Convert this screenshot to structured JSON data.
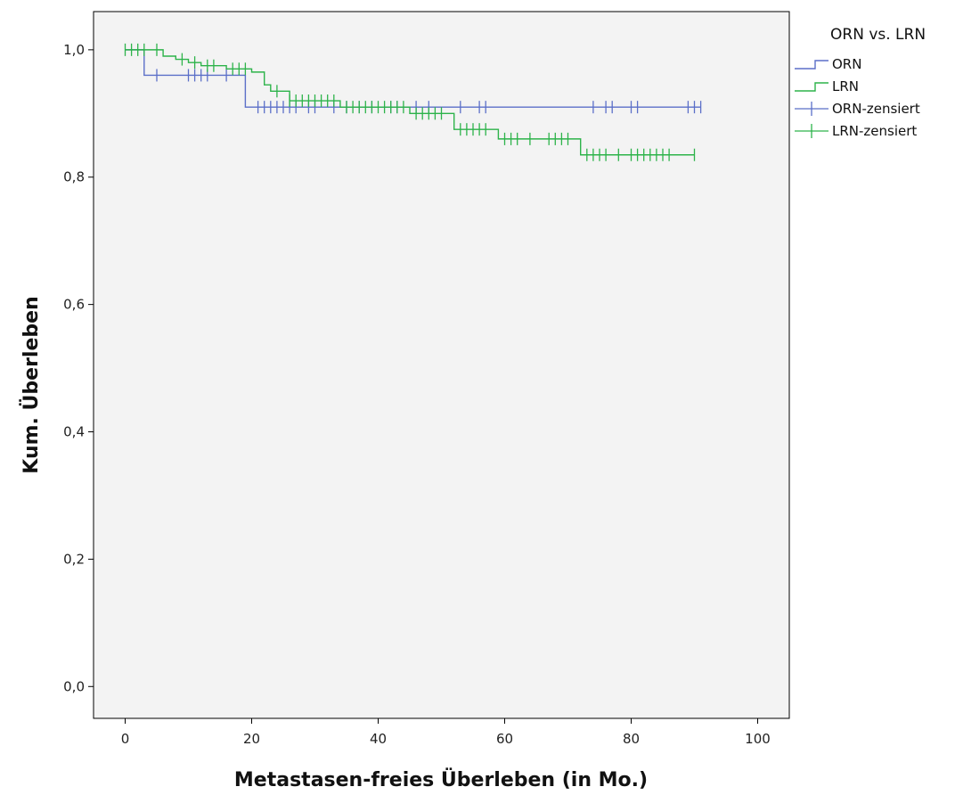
{
  "chart_data": {
    "type": "line",
    "subtype": "kaplan-meier step",
    "xlabel": "Metastasen-freies Überleben (in Mo.)",
    "ylabel": "Kum. Überleben",
    "xlim": [
      -5,
      105
    ],
    "ylim": [
      -0.05,
      1.06
    ],
    "x_ticks": [
      0,
      20,
      40,
      60,
      80,
      100
    ],
    "x_tick_labels": [
      "0",
      "20",
      "40",
      "60",
      "80",
      "100"
    ],
    "y_ticks": [
      0.0,
      0.2,
      0.4,
      0.6,
      0.8,
      1.0
    ],
    "y_tick_labels": [
      "0,0",
      "0,2",
      "0,4",
      "0,6",
      "0,8",
      "1,0"
    ],
    "grid": false,
    "background": "#f3f3f3",
    "legend": {
      "title": "ORN vs. LRN",
      "position": "outside-right-top",
      "entries": [
        "ORN",
        "LRN",
        "ORN-zensiert",
        "LRN-zensiert"
      ]
    },
    "series": [
      {
        "name": "ORN",
        "color": "#5b6fc8",
        "x_end": 91,
        "steps": [
          [
            0,
            1.0
          ],
          [
            3,
            0.96
          ],
          [
            19,
            0.91
          ]
        ],
        "censored": [
          5,
          10,
          11,
          12,
          13,
          16,
          21,
          22,
          23,
          24,
          25,
          26,
          27,
          29,
          30,
          33,
          35,
          37,
          39,
          42,
          43,
          46,
          48,
          53,
          56,
          57,
          74,
          76,
          77,
          80,
          81,
          89,
          90,
          91
        ]
      },
      {
        "name": "LRN",
        "color": "#2db34a",
        "x_end": 90,
        "steps": [
          [
            0,
            1.0
          ],
          [
            6,
            0.99
          ],
          [
            8,
            0.985
          ],
          [
            10,
            0.98
          ],
          [
            12,
            0.975
          ],
          [
            16,
            0.97
          ],
          [
            20,
            0.965
          ],
          [
            22,
            0.945
          ],
          [
            23,
            0.935
          ],
          [
            26,
            0.92
          ],
          [
            34,
            0.91
          ],
          [
            45,
            0.9
          ],
          [
            52,
            0.875
          ],
          [
            59,
            0.86
          ],
          [
            72,
            0.835
          ]
        ],
        "censored": [
          0,
          1,
          2,
          3,
          5,
          9,
          11,
          13,
          14,
          17,
          18,
          19,
          24,
          26,
          27,
          28,
          29,
          30,
          31,
          32,
          33,
          35,
          36,
          37,
          38,
          39,
          40,
          41,
          42,
          43,
          44,
          46,
          47,
          48,
          49,
          50,
          53,
          54,
          55,
          56,
          57,
          60,
          61,
          62,
          64,
          67,
          68,
          69,
          70,
          73,
          74,
          75,
          76,
          78,
          80,
          81,
          82,
          83,
          84,
          85,
          86,
          90
        ]
      }
    ]
  }
}
